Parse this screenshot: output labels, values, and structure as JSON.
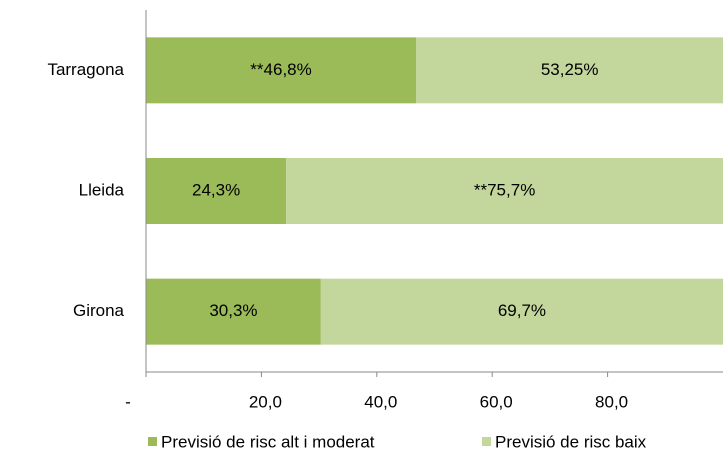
{
  "chart_data": {
    "type": "bar",
    "orientation": "horizontal",
    "stacked": true,
    "categories": [
      "Tarragona",
      "Lleida",
      "Girona"
    ],
    "series": [
      {
        "name": "Previsió de risc alt i moderat",
        "color": "#9bbb59",
        "values": [
          46.8,
          24.3,
          30.3
        ],
        "value_labels": [
          "**46,8%",
          "24,3%",
          "30,3%"
        ]
      },
      {
        "name": "Previsió de risc baix",
        "color": "#c3d69b",
        "values": [
          53.25,
          75.7,
          69.7
        ],
        "value_labels": [
          "53,25%",
          "**75,7%",
          "69,7%"
        ]
      }
    ],
    "xlim": [
      0,
      100
    ],
    "xticks": [
      {
        "value": 0,
        "label": "-"
      },
      {
        "value": 20,
        "label": "20,0"
      },
      {
        "value": 40,
        "label": "40,0"
      },
      {
        "value": 60,
        "label": "60,0"
      },
      {
        "value": 80,
        "label": "80,0"
      }
    ],
    "legend": "bottom"
  }
}
